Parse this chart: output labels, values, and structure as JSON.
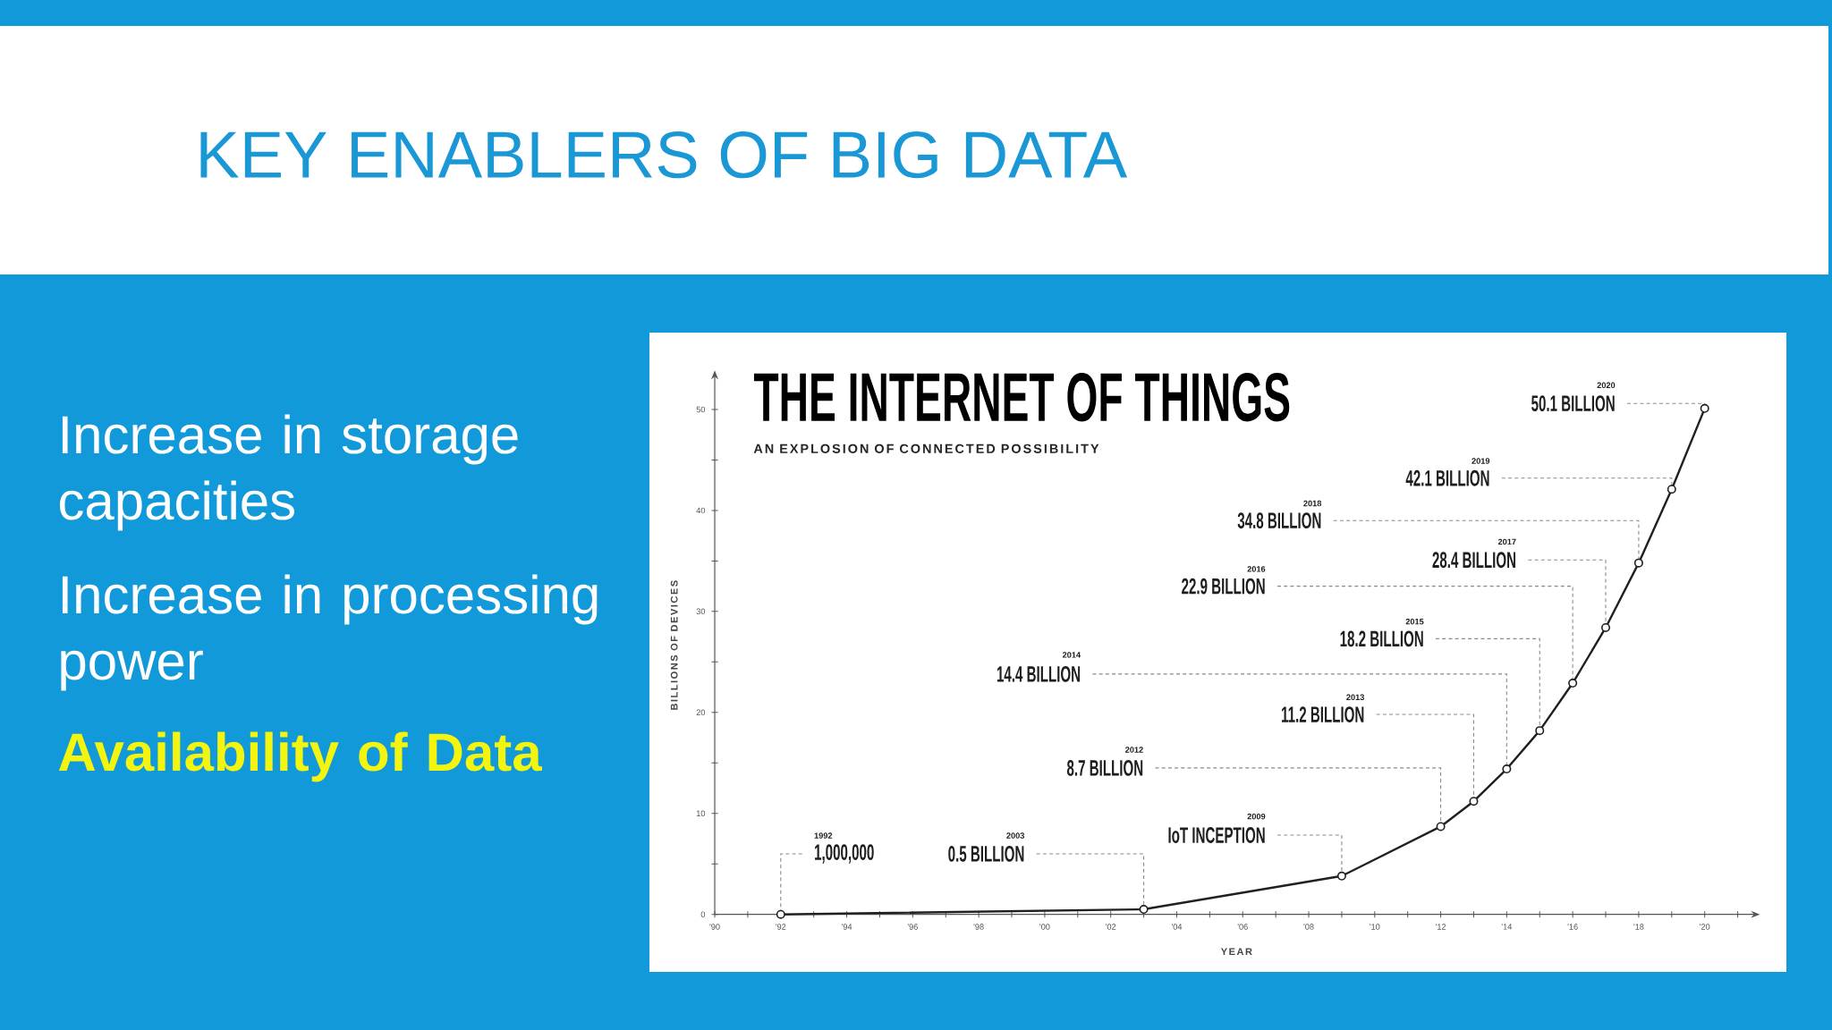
{
  "chart_data": [
    {
      "type": "other",
      "title": "KEY ENABLERS OF BIG DATA",
      "annotations": [
        "Increase in storage capacities",
        "Increase in processing power",
        "Availability of Data"
      ]
    },
    {
      "type": "line",
      "title": "THE INTERNET OF THINGS",
      "subtitle": "AN EXPLOSION OF CONNECTED POSSIBILITY",
      "xlabel": "YEAR",
      "ylabel": "BILLIONS OF DEVICES",
      "x": [
        1992,
        2003,
        2009,
        2012,
        2013,
        2014,
        2015,
        2016,
        2017,
        2018,
        2019,
        2020
      ],
      "values": [
        0.001,
        0.5,
        3.8,
        8.7,
        11.2,
        14.4,
        18.2,
        22.9,
        28.4,
        34.8,
        42.1,
        50.1
      ],
      "value_labels": [
        null,
        "0.5 BILLION",
        null,
        "8.7 BILLION",
        "11.2 BILLION",
        "14.4 BILLION",
        "18.2 BILLION",
        "22.9 BILLION",
        "28.4 BILLION",
        "34.8 BILLION",
        "42.1 BILLION",
        "50.1 BILLION"
      ],
      "color": "#231f20",
      "marker": "circle",
      "xlim": [
        1990,
        2021.5
      ],
      "ylim": [
        0,
        53.3
      ],
      "xticks": [
        {
          "value": 1990,
          "label": "'90"
        },
        {
          "value": 1991,
          "label": null
        },
        {
          "value": 1992,
          "label": "'92"
        },
        {
          "value": 1993,
          "label": null
        },
        {
          "value": 1994,
          "label": "'94"
        },
        {
          "value": 1995,
          "label": null
        },
        {
          "value": 1996,
          "label": "'96"
        },
        {
          "value": 1997,
          "label": null
        },
        {
          "value": 1998,
          "label": "'98"
        },
        {
          "value": 1999,
          "label": null
        },
        {
          "value": 2000,
          "label": "'00"
        },
        {
          "value": 2001,
          "label": null
        },
        {
          "value": 2002,
          "label": "'02"
        },
        {
          "value": 2003,
          "label": null
        },
        {
          "value": 2004,
          "label": "'04"
        },
        {
          "value": 2005,
          "label": null
        },
        {
          "value": 2006,
          "label": "'06"
        },
        {
          "value": 2007,
          "label": null
        },
        {
          "value": 2008,
          "label": "'08"
        },
        {
          "value": 2009,
          "label": null
        },
        {
          "value": 2010,
          "label": "'10"
        },
        {
          "value": 2011,
          "label": null
        },
        {
          "value": 2012,
          "label": "'12"
        },
        {
          "value": 2013,
          "label": null
        },
        {
          "value": 2014,
          "label": "'14"
        },
        {
          "value": 2015,
          "label": null
        },
        {
          "value": 2016,
          "label": "'16"
        },
        {
          "value": 2017,
          "label": null
        },
        {
          "value": 2018,
          "label": "'18"
        },
        {
          "value": 2019,
          "label": null
        },
        {
          "value": 2020,
          "label": "'20"
        },
        {
          "value": 2021,
          "label": null
        }
      ],
      "yticks": [
        0,
        {
          "value": 5,
          "label": null
        },
        10,
        {
          "value": 15,
          "label": null
        },
        20,
        {
          "value": 25,
          "label": null
        },
        30,
        {
          "value": 35,
          "label": null
        },
        40,
        {
          "value": 45,
          "label": null
        },
        50
      ],
      "annotations": [
        "1992",
        {
          "text": "1,000,000",
          "x": 1992,
          "y": 0.001
        },
        "2003",
        "2009",
        {
          "text": "IoT INCEPTION",
          "x": 2009,
          "y": 3.8
        },
        "2012",
        "2013",
        "2014",
        "2015",
        "2016",
        "2017",
        "2018",
        "2019",
        "2020"
      ]
    }
  ]
}
